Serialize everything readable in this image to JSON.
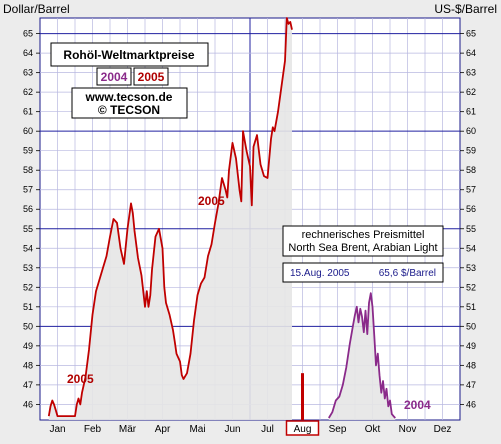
{
  "chart_data": {
    "type": "line",
    "title": "Rohöl-Weltmarktpreise",
    "ylabel_left": "Dollar/Barrel",
    "ylabel_right": "US-$/Barrel",
    "ylim": [
      45.2,
      65.8
    ],
    "yticks": [
      46,
      47,
      48,
      49,
      50,
      51,
      52,
      53,
      54,
      55,
      56,
      57,
      58,
      59,
      60,
      61,
      62,
      63,
      64,
      65
    ],
    "months": [
      "Jan",
      "Feb",
      "Mär",
      "Apr",
      "Mai",
      "Jun",
      "Jul",
      "Aug",
      "Sep",
      "Okt",
      "Nov",
      "Dez"
    ],
    "highlight_month": "Aug",
    "xlim": [
      0,
      12
    ],
    "grid": true,
    "legend_years": [
      "2004",
      "2005"
    ],
    "website": "www.tecson.de",
    "copyright": "© TECSON",
    "mean_box": {
      "line1": "rechnerisches Preismittel",
      "line2": "North Sea Brent, Arabian Light"
    },
    "readout": {
      "date": "15.Aug. 2005",
      "value": "65,6 $/Barrel"
    },
    "series": [
      {
        "name": "2005",
        "color": "#c00000",
        "x": [
          0.25,
          0.3,
          0.35,
          0.4,
          0.45,
          0.5,
          1.0,
          1.05,
          1.1,
          1.15,
          1.2,
          1.3,
          1.4,
          1.5,
          1.6,
          1.7,
          1.8,
          1.9,
          2.0,
          2.1,
          2.2,
          2.3,
          2.4,
          2.5,
          2.6,
          2.65,
          2.7,
          2.8,
          2.9,
          3.0,
          3.05,
          3.1,
          3.15,
          3.2,
          3.3,
          3.4,
          3.5,
          3.55,
          3.6,
          3.7,
          3.8,
          3.85,
          3.9,
          4.0,
          4.05,
          4.1,
          4.2,
          4.3,
          4.4,
          4.5,
          4.6,
          4.7,
          4.8,
          4.9,
          5.0,
          5.1,
          5.2,
          5.3,
          5.35,
          5.4,
          5.5,
          5.6,
          5.7,
          5.75,
          5.8,
          5.9,
          6.0,
          6.05,
          6.1,
          6.2,
          6.3,
          6.4,
          6.5,
          6.6,
          6.65,
          6.7,
          6.8,
          6.9,
          7.0,
          7.05,
          7.1,
          7.15,
          7.2
        ],
        "values": [
          45.4,
          45.9,
          46.2,
          46.0,
          45.7,
          45.4,
          45.4,
          46.0,
          46.3,
          46.0,
          46.6,
          47.4,
          48.8,
          50.6,
          51.8,
          52.4,
          53.0,
          53.6,
          54.6,
          55.5,
          55.3,
          54.0,
          53.2,
          55.0,
          56.3,
          55.8,
          54.9,
          53.5,
          52.6,
          51.0,
          51.8,
          51.0,
          51.6,
          52.9,
          54.6,
          55.0,
          54.0,
          52.0,
          51.2,
          50.6,
          49.8,
          49.2,
          48.6,
          48.2,
          47.5,
          47.3,
          47.6,
          48.6,
          50.3,
          51.6,
          52.2,
          52.5,
          53.6,
          54.2,
          55.3,
          56.3,
          57.6,
          57.0,
          56.6,
          58.0,
          59.4,
          58.6,
          57.0,
          56.4,
          60.0,
          59.0,
          58.2,
          56.2,
          59.2,
          59.8,
          58.3,
          57.7,
          57.6,
          59.6,
          60.2,
          60.0,
          61.0,
          62.3,
          63.6,
          65.8,
          65.5,
          65.6,
          65.2
        ]
      },
      {
        "name": "2004",
        "color": "#8a2a8a",
        "x": [
          8.25,
          8.35,
          8.45,
          8.55,
          8.65,
          8.75,
          8.85,
          8.95,
          9.0,
          9.05,
          9.1,
          9.15,
          9.2,
          9.25,
          9.3,
          9.35,
          9.4,
          9.45,
          9.5,
          9.55,
          9.6,
          9.65,
          9.7,
          9.75,
          9.8,
          9.85,
          9.9,
          9.95,
          10.0,
          10.05,
          10.1,
          10.15
        ],
        "values": [
          45.3,
          45.6,
          46.2,
          46.4,
          47.0,
          47.9,
          49.1,
          50.1,
          50.6,
          51.0,
          50.2,
          50.9,
          50.5,
          49.7,
          50.8,
          49.6,
          51.2,
          51.7,
          51.0,
          49.5,
          48.0,
          48.6,
          47.5,
          46.6,
          47.2,
          46.3,
          46.8,
          45.9,
          46.2,
          45.5,
          45.4,
          45.3
        ]
      }
    ]
  }
}
